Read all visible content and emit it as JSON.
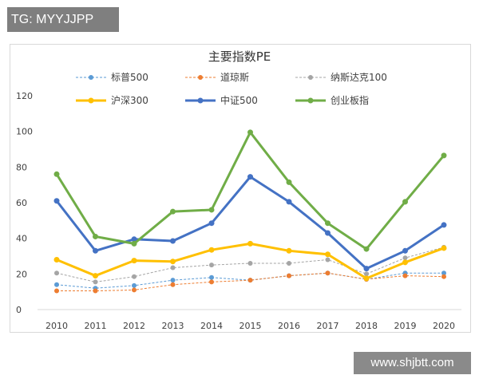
{
  "badge": "TG: MYYJJPP",
  "watermark": "www.shjbtt.com",
  "chart_data": {
    "type": "line",
    "title": "主要指数PE",
    "xlabel": "",
    "ylabel": "",
    "x": [
      "2010",
      "2011",
      "2012",
      "2013",
      "2014",
      "2015",
      "2016",
      "2017",
      "2018",
      "2019",
      "2020"
    ],
    "ylim": [
      0,
      120
    ],
    "yticks": [
      0,
      20,
      40,
      60,
      80,
      100,
      120
    ],
    "grid": false,
    "legend_position": "top",
    "series": [
      {
        "name": "标普500",
        "color": "#5b9bd5",
        "style": "dashed",
        "width": 1,
        "values": [
          14,
          12,
          13.5,
          16.5,
          18,
          16.5,
          19,
          20.5,
          17,
          20.5,
          20.5
        ]
      },
      {
        "name": "道琼斯",
        "color": "#ed7d31",
        "style": "dashed",
        "width": 1,
        "values": [
          10.5,
          10.5,
          11,
          14,
          15.5,
          16.5,
          19,
          20.5,
          17,
          19,
          18.5
        ]
      },
      {
        "name": "纳斯达克100",
        "color": "#a5a5a5",
        "style": "dashed",
        "width": 1,
        "values": [
          20.5,
          15.5,
          18.5,
          23.5,
          25,
          26,
          26,
          28,
          20,
          29,
          35
        ]
      },
      {
        "name": "沪深300",
        "color": "#ffc000",
        "style": "solid",
        "width": 3,
        "values": [
          28,
          19,
          27.5,
          27,
          33.5,
          37,
          33,
          31,
          17.5,
          26.5,
          34.5
        ]
      },
      {
        "name": "中证500",
        "color": "#4472c4",
        "style": "solid",
        "width": 3,
        "values": [
          61,
          33,
          39.5,
          38.5,
          48.5,
          74.5,
          60.5,
          43,
          23,
          33,
          47.5
        ]
      },
      {
        "name": "创业板指",
        "color": "#70ad47",
        "style": "solid",
        "width": 3,
        "values": [
          76,
          41,
          37,
          55,
          56,
          99.5,
          71.5,
          48.5,
          34,
          60.5,
          86.5
        ]
      }
    ]
  }
}
